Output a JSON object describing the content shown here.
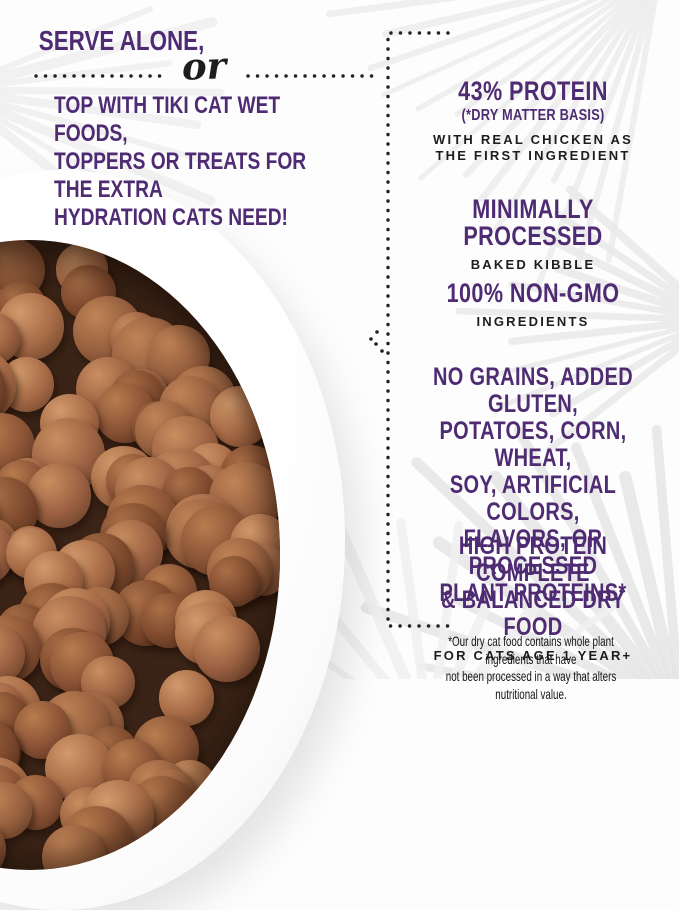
{
  "colors": {
    "accent_purple": "#4e2b72",
    "text_black": "#1d1d1b",
    "dot_black": "#222222",
    "bowl_white": "#ffffff",
    "kibble_gap_brown": "#3b2417",
    "background": "#fdfdfd",
    "palm_gray": "#ececec"
  },
  "left_panel": {
    "headline": "SERVE ALONE,",
    "divider_word": "or",
    "subheadline_lines": [
      "TOP WITH TIKI CAT WET FOODS,",
      "TOPPERS OR TREATS FOR THE EXTRA",
      "HYDRATION CATS NEED!"
    ]
  },
  "bowl": {
    "description": "White bowl filled with brown round baked kibble pieces"
  },
  "features": [
    {
      "title": "43% PROTEIN",
      "subtitle": "(*DRY MATTER BASIS)",
      "detail_lines": [
        "WITH REAL CHICKEN AS",
        "THE FIRST INGREDIENT"
      ]
    },
    {
      "title": "MINIMALLY PROCESSED",
      "detail_lines": [
        "BAKED KIBBLE"
      ]
    },
    {
      "title": "100% NON-GMO",
      "detail_lines": [
        "INGREDIENTS"
      ]
    },
    {
      "title_lines": [
        "NO GRAINS, ADDED GLUTEN,",
        "POTATOES, CORN, WHEAT,",
        "SOY, ARTIFICIAL COLORS,",
        "FLAVORS, OR PROCESSED",
        "PLANT PROTEINS*"
      ]
    },
    {
      "title_lines": [
        "HIGH PROTEIN COMPLETE",
        "& BALANCED DRY FOOD"
      ],
      "detail_lines": [
        "FOR CATS AGE 1 YEAR+"
      ]
    }
  ],
  "footnote_lines": [
    "*Our dry cat food contains whole plant ingredients that have",
    "not been processed in a way that alters nutritional value."
  ],
  "kibble_palette": [
    [
      "#c98f60",
      "#9c6142",
      "#5f3a24"
    ],
    [
      "#b87c4e",
      "#8a5336",
      "#54301c"
    ],
    [
      "#d19a6b",
      "#a76b47",
      "#6a4129"
    ],
    [
      "#a96f47",
      "#7e4a2e",
      "#4a2a18"
    ],
    [
      "#c08356",
      "#96603f",
      "#5a3622"
    ]
  ]
}
